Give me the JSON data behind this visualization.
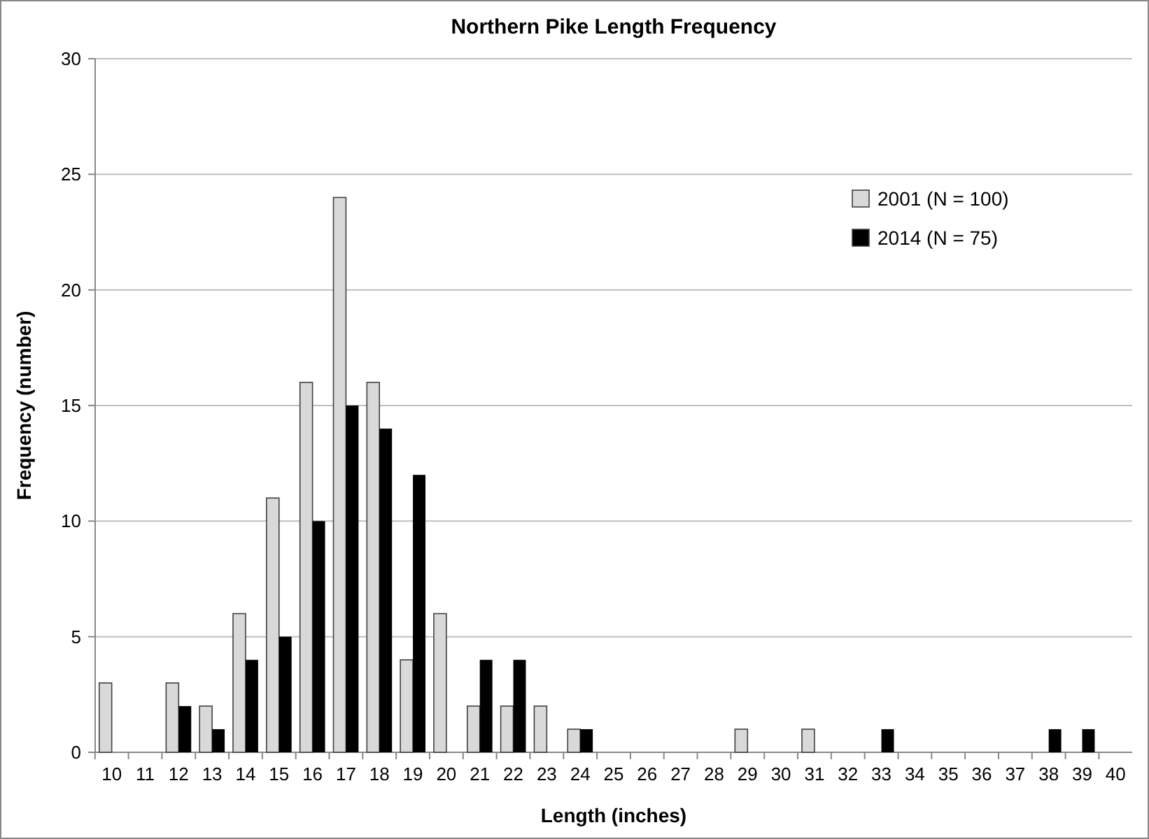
{
  "chart_data": {
    "type": "bar",
    "title": "Northern Pike Length Frequency",
    "xlabel": "Length (inches)",
    "ylabel": "Frequency (number)",
    "categories": [
      "10",
      "11",
      "12",
      "13",
      "14",
      "15",
      "16",
      "17",
      "18",
      "19",
      "20",
      "21",
      "22",
      "23",
      "24",
      "25",
      "26",
      "27",
      "28",
      "29",
      "30",
      "31",
      "32",
      "33",
      "34",
      "35",
      "36",
      "37",
      "38",
      "39",
      "40"
    ],
    "series": [
      {
        "name": "2001 (N = 100)",
        "color": "#d9d9d9",
        "values": [
          3,
          0,
          3,
          2,
          6,
          11,
          16,
          24,
          16,
          4,
          6,
          2,
          2,
          2,
          1,
          0,
          0,
          0,
          0,
          1,
          0,
          1,
          0,
          0,
          0,
          0,
          0,
          0,
          0,
          0,
          0
        ]
      },
      {
        "name": "2014 (N = 75)",
        "color": "#000000",
        "values": [
          0,
          0,
          2,
          1,
          4,
          5,
          10,
          15,
          14,
          12,
          0,
          4,
          4,
          0,
          1,
          0,
          0,
          0,
          0,
          0,
          0,
          0,
          0,
          1,
          0,
          0,
          0,
          0,
          1,
          1,
          0
        ]
      }
    ],
    "ylim": [
      0,
      30
    ],
    "yticks": [
      0,
      5,
      10,
      15,
      20,
      25,
      30
    ],
    "grid": "y",
    "legend": "top right"
  }
}
